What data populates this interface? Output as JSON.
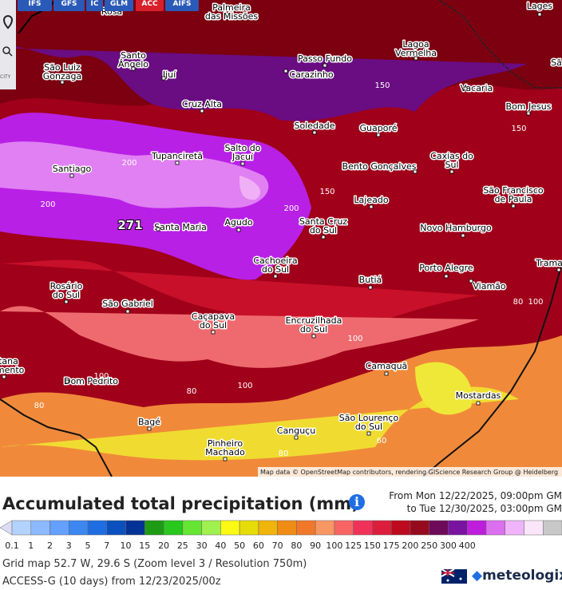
{
  "toolbar": {
    "buttons": [
      "IFS",
      "GFS",
      "IC",
      "GLM",
      "ACC",
      "AIFS"
    ],
    "side_label": "CITY"
  },
  "map": {
    "cities": [
      {
        "lines": [
          "Rosa"
        ]
      },
      {
        "lines": [
          "Palmeira",
          "das Missões"
        ]
      },
      {
        "lines": [
          "Lages"
        ]
      },
      {
        "lines": [
          "Lagoa",
          "Vermelha"
        ]
      },
      {
        "lines": [
          "Santo",
          "Ângelo"
        ]
      },
      {
        "lines": [
          "São Luiz",
          "Gonzaga"
        ]
      },
      {
        "lines": [
          "Passo Fundo"
        ]
      },
      {
        "lines": [
          "Carazinho"
        ]
      },
      {
        "lines": [
          "Ijuí"
        ]
      },
      {
        "lines": [
          "Vacaria"
        ]
      },
      {
        "lines": [
          "Cruz Alta"
        ]
      },
      {
        "lines": [
          "Bom Jesus"
        ]
      },
      {
        "lines": [
          "Soledade"
        ]
      },
      {
        "lines": [
          "Guaporé"
        ]
      },
      {
        "lines": [
          "Salto do",
          "Jacuí"
        ]
      },
      {
        "lines": [
          "Tupanciretã"
        ]
      },
      {
        "lines": [
          "Caxias do",
          "Sul"
        ]
      },
      {
        "lines": [
          "Bento Gonçalves"
        ]
      },
      {
        "lines": [
          "Santiago"
        ]
      },
      {
        "lines": [
          "São Francisco",
          "de Paula"
        ]
      },
      {
        "lines": [
          "Lajeado"
        ]
      },
      {
        "lines": [
          "Santa Maria"
        ]
      },
      {
        "lines": [
          "Agudo"
        ]
      },
      {
        "lines": [
          "Santa Cruz",
          "do Sul"
        ]
      },
      {
        "lines": [
          "Novo Hamburgo"
        ]
      },
      {
        "lines": [
          "Cachoeira",
          "do Sul"
        ]
      },
      {
        "lines": [
          "Porto Alegre"
        ]
      },
      {
        "lines": [
          "Trama"
        ]
      },
      {
        "lines": [
          "Butiá"
        ]
      },
      {
        "lines": [
          "Viamão"
        ]
      },
      {
        "lines": [
          "Rosário",
          "do Sul"
        ]
      },
      {
        "lines": [
          "São Gabriel"
        ]
      },
      {
        "lines": [
          "Caçapava",
          "do Sul"
        ]
      },
      {
        "lines": [
          "Encruzilhada",
          "do Sul"
        ]
      },
      {
        "lines": [
          "Camaquã"
        ]
      },
      {
        "lines": [
          "Dom Pedrito"
        ]
      },
      {
        "lines": [
          "ntana",
          "ramento"
        ]
      },
      {
        "lines": [
          "Mostardas"
        ]
      },
      {
        "lines": [
          "Bagé"
        ]
      },
      {
        "lines": [
          "São Lourenço",
          "do Sul"
        ]
      },
      {
        "lines": [
          "Canguçu"
        ]
      },
      {
        "lines": [
          "Pinheiro",
          "Machado"
        ]
      },
      {
        "lines": [
          "Sã"
        ]
      }
    ],
    "contour_labels": [
      "200",
      "200",
      "200",
      "150",
      "150",
      "150",
      "100",
      "100",
      "100",
      "100",
      "80",
      "80",
      "80",
      "80",
      "60"
    ],
    "max_label": "271",
    "attribution": "Map data © OpenStreetMap contributors, rendering GIScience Research Group @ Heidelberg"
  },
  "panel": {
    "title": "Accumulated total precipitation (mm)",
    "from": "From Mon 12/22/2025, 09:00pm GM",
    "to": "to Tue 12/30/2025, 03:00pm GM",
    "legend": {
      "labels": [
        "0.1",
        "1",
        "2",
        "3",
        "5",
        "7",
        "10",
        "15",
        "20",
        "25",
        "30",
        "40",
        "50",
        "60",
        "70",
        "80",
        "90",
        "100",
        "125",
        "150",
        "175",
        "200",
        "250",
        "300",
        "400"
      ],
      "colors": [
        "#dcdcf5",
        "#b4d2ff",
        "#8cb9ff",
        "#64a0ff",
        "#3c87f0",
        "#1e6ee1",
        "#0a50be",
        "#053296",
        "#1e9b14",
        "#28c81e",
        "#64e632",
        "#a0f050",
        "#fafa14",
        "#e6dc0a",
        "#f0b40a",
        "#f08c14",
        "#f07828",
        "#f89664",
        "#f86464",
        "#f0325a",
        "#dc1e3c",
        "#be0a1e",
        "#960a1e",
        "#6e0a5a",
        "#7814a0",
        "#be1edc",
        "#dc6ef0",
        "#f0b4fa",
        "#fae6fa",
        "#c8c8c8"
      ]
    },
    "grid_info": "Grid map 52.7 W, 29.6 S (Zoom level 3 / Resolution 750m)",
    "model_info": "ACCESS-G (10 days) from 12/23/2025/00z",
    "brand": "meteologix.c"
  }
}
